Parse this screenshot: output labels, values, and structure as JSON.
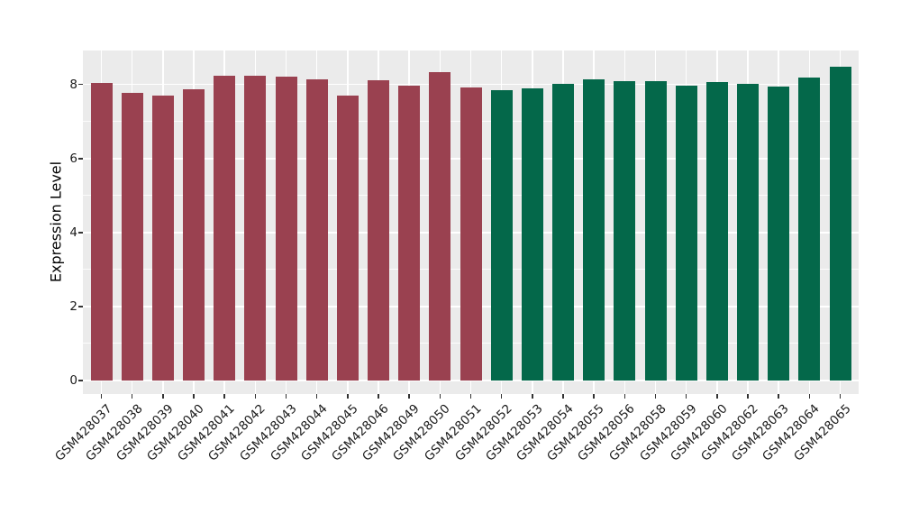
{
  "figure": {
    "background": "#FFFFFF",
    "title": ""
  },
  "chart_data": {
    "type": "bar",
    "title": "",
    "xlabel": "",
    "ylabel": "Expression Level",
    "categories": [
      "GSM428037",
      "GSM428038",
      "GSM428039",
      "GSM428040",
      "GSM428041",
      "GSM428042",
      "GSM428043",
      "GSM428044",
      "GSM428045",
      "GSM428046",
      "GSM428049",
      "GSM428050",
      "GSM428051",
      "GSM428052",
      "GSM428053",
      "GSM428054",
      "GSM428055",
      "GSM428056",
      "GSM428058",
      "GSM428059",
      "GSM428060",
      "GSM428062",
      "GSM428063",
      "GSM428064",
      "GSM428065"
    ],
    "values": [
      8.05,
      7.77,
      7.71,
      7.87,
      8.24,
      8.23,
      8.21,
      8.13,
      7.7,
      8.11,
      7.98,
      8.34,
      7.93,
      7.85,
      7.9,
      8.01,
      8.13,
      8.08,
      8.09,
      7.97,
      8.06,
      8.03,
      7.95,
      8.19,
      8.49
    ],
    "bar_colors": [
      "#9A4150",
      "#9A4150",
      "#9A4150",
      "#9A4150",
      "#9A4150",
      "#9A4150",
      "#9A4150",
      "#9A4150",
      "#9A4150",
      "#9A4150",
      "#9A4150",
      "#9A4150",
      "#9A4150",
      "#04684A",
      "#04684A",
      "#04684A",
      "#04684A",
      "#04684A",
      "#04684A",
      "#04684A",
      "#04684A",
      "#04684A",
      "#04684A",
      "#04684A",
      "#04684A"
    ],
    "yticks": [
      0,
      2,
      4,
      6,
      8
    ],
    "minor_yticks": [
      1,
      3,
      5,
      7
    ],
    "ylim": [
      0,
      8.5
    ],
    "panel_value_range": [
      -0.37,
      8.92
    ],
    "grid": true,
    "legend_position": "none",
    "panel_background": "#EBEBEB",
    "grid_major_color": "#FFFFFF",
    "grid_minor_color": "#FFFFFF",
    "axis_text_color": "#1A1A1A",
    "tick_mark_color": "#333333"
  }
}
